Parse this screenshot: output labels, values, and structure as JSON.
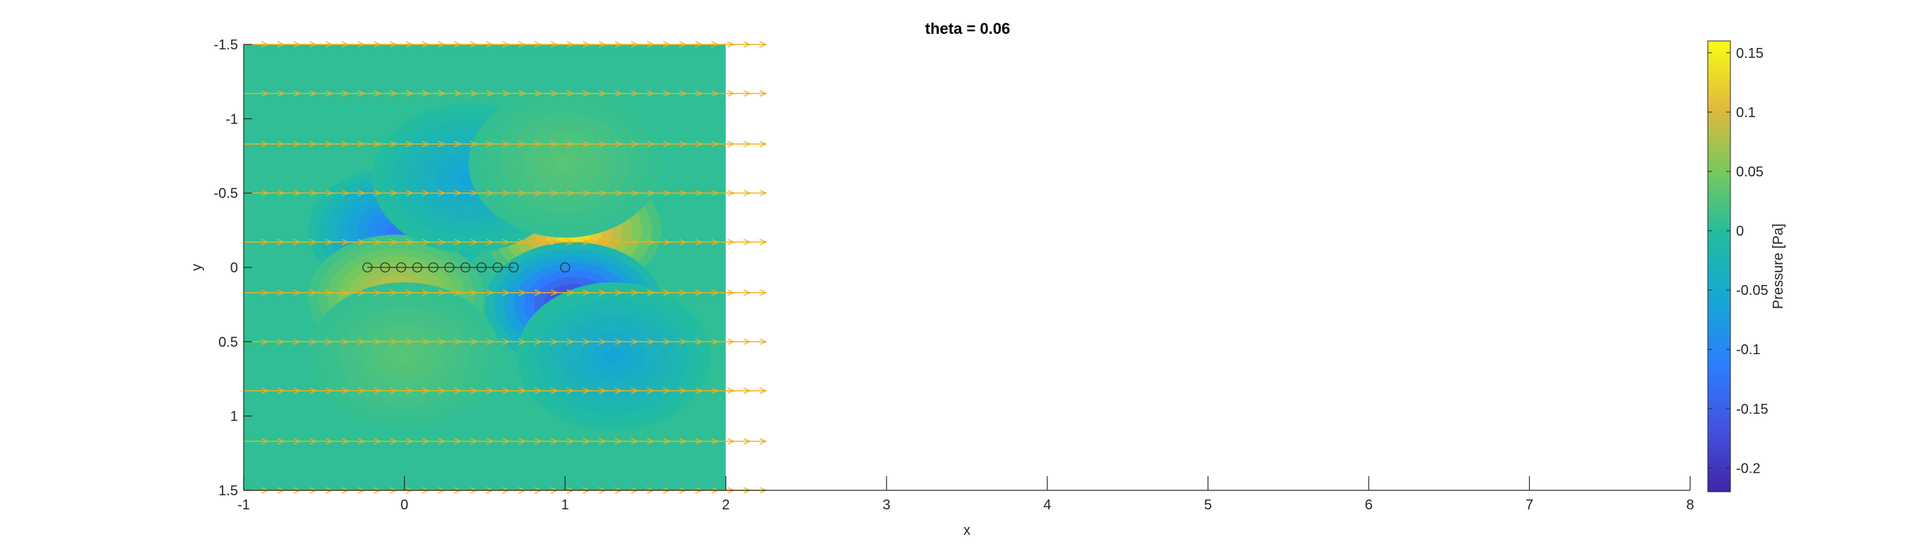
{
  "chart_data": {
    "type": "heatmap",
    "title": "theta = 0.06",
    "xlabel": "x",
    "ylabel": "y",
    "xlim": [
      -1,
      8
    ],
    "ylim": [
      -1.5,
      1.5
    ],
    "y_axis_reversed": true,
    "x_ticks": [
      "-1",
      "0",
      "1",
      "2",
      "3",
      "4",
      "5",
      "6",
      "7",
      "8"
    ],
    "y_ticks": [
      "-1.5",
      "-1",
      "-0.5",
      "0",
      "0.5",
      "1",
      "1.5"
    ],
    "colorbar": {
      "label": "Pressure [Pa]",
      "range": [
        -0.22,
        0.16
      ],
      "ticks": [
        "0.15",
        "0.1",
        "0.05",
        "0",
        "-0.05",
        "-0.1",
        "-0.15",
        "-0.2"
      ],
      "colormap": "parula"
    },
    "field_extent": {
      "x": [
        -1,
        2
      ],
      "y": [
        -1.5,
        1.5
      ]
    },
    "pressure_features": [
      {
        "x": 1.05,
        "y": -0.25,
        "value": 0.15
      },
      {
        "x": 1.05,
        "y": 0.25,
        "value": -0.21
      },
      {
        "x": -0.05,
        "y": -0.25,
        "value": -0.12
      },
      {
        "x": -0.05,
        "y": 0.2,
        "value": 0.1
      },
      {
        "x": 0.4,
        "y": -0.6,
        "value": -0.06
      },
      {
        "x": 1.3,
        "y": 0.6,
        "value": -0.06
      },
      {
        "x": 1.0,
        "y": -0.7,
        "value": 0.03
      },
      {
        "x": 0.0,
        "y": 0.6,
        "value": 0.03
      }
    ],
    "vortex_markers": {
      "x": [
        -0.23,
        -0.12,
        -0.02,
        0.08,
        0.18,
        0.28,
        0.38,
        0.48,
        0.58,
        0.68,
        1.0
      ],
      "y": [
        0,
        0,
        0,
        0,
        0,
        0,
        0,
        0,
        0,
        0,
        0
      ]
    },
    "quiver": {
      "rows_y": [
        -1.5,
        -1.17,
        -0.83,
        -0.5,
        -0.17,
        0.17,
        0.5,
        0.83,
        1.17,
        1.5
      ],
      "x_start": -1,
      "x_end": 2.25,
      "color": "#edb120"
    }
  }
}
